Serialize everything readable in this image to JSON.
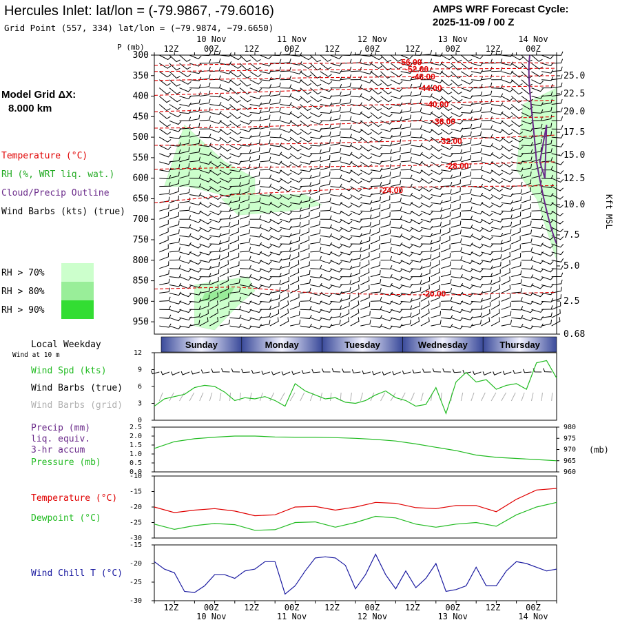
{
  "header": {
    "title": "Hercules Inlet:  lat/lon = (-79.9867, -79.6016)",
    "grid_point": "Grid Point (557, 334) lat/lon = (−79.9874, −79.6650)",
    "cycle_label": "AMPS WRF Forecast Cycle:",
    "cycle_value": "2025-11-09 / 00  Z"
  },
  "side": {
    "model_grid_label": "Model Grid ΔX:",
    "model_grid_value": "8.000 km",
    "legend_temperature": "Temperature (°C)",
    "legend_rh": "RH (%, WRT liq. wat.)",
    "legend_cloud": "Cloud/Precip Outline",
    "legend_wind": "Wind Barbs (kts) (true)",
    "rh70": "RH > 70%",
    "rh80": "RH > 80%",
    "rh90": "RH > 90%",
    "p_label": "P (mb)",
    "kft_label": "Kft MSL"
  },
  "colors": {
    "temperature": "#e00000",
    "rh_legend": "#e00000",
    "cloud": "#6a2a8a",
    "wind": "#000000",
    "wind_grid": "#b0b0b0",
    "speed": "#22bb22",
    "pressure": "#22bb22",
    "dewpoint": "#22bb22",
    "windchill": "#1a1aa0",
    "rh70": "#ccffcc",
    "rh80": "#99ee99",
    "rh90": "#33dd33",
    "weekday_band": "#3a4a9a"
  },
  "time_axis": {
    "top_hours": [
      "12Z",
      "00Z",
      "12Z",
      "00Z",
      "12Z",
      "00Z",
      "12Z",
      "00Z",
      "12Z",
      "00Z"
    ],
    "top_dates": [
      "10 Nov",
      "11 Nov",
      "12 Nov",
      "13 Nov",
      "14 Nov"
    ],
    "bottom_hours": [
      "12Z",
      "00Z",
      "12Z",
      "00Z",
      "12Z",
      "00Z",
      "12Z",
      "00Z",
      "12Z",
      "00Z"
    ],
    "bottom_dates": [
      "10 Nov",
      "11 Nov",
      "12 Nov",
      "13 Nov",
      "14 Nov"
    ]
  },
  "weekday": {
    "title": "Local Weekday",
    "subtitle": "Wind at 10 m",
    "days": [
      "Sunday",
      "Monday",
      "Tuesday",
      "Wednesday",
      "Thursday"
    ]
  },
  "panel_labels": {
    "wind_speed": "Wind Spd (kts)",
    "wind_barbs_true": "Wind Barbs (true)",
    "wind_barbs_grid": "Wind Barbs (grid)",
    "precip1": "Precip (mm)",
    "precip2": "liq. equiv.",
    "precip3": "3-hr accum",
    "pressure": "Pressure (mb)",
    "pressure_unit": "(mb)",
    "temperature": "Temperature (°C)",
    "dewpoint": "Dewpoint (°C)",
    "windchill": "Wind Chill T (°C)"
  },
  "chart_data": [
    {
      "type": "line",
      "panel": "cross-section",
      "y_pressure_ticks": [
        300,
        350,
        400,
        450,
        500,
        550,
        600,
        650,
        700,
        750,
        800,
        850,
        900,
        950
      ],
      "y_kft_ticks": [
        "25.0",
        "22.5",
        "20.0",
        "17.5",
        "15.0",
        "12.5",
        "10.0",
        "7.5",
        "5.0",
        "2.5",
        "0.68"
      ],
      "temperature_contour_labels": [
        "-56.00",
        "-52.00",
        "-48.00",
        "-44.00",
        "-40.00",
        "-36.00",
        "-32.00",
        "-28.00",
        "-24.00",
        "-20.00"
      ],
      "temperature_contours": [
        {
          "label": "-56.00",
          "p": [
            [
              0,
              325
            ],
            [
              24,
              322
            ],
            [
              48,
              320
            ],
            [
              72,
              318
            ],
            [
              96,
              318
            ],
            [
              120,
              319
            ]
          ]
        },
        {
          "label": "-52.00",
          "p": [
            [
              0,
              340
            ],
            [
              24,
              338
            ],
            [
              48,
              336
            ],
            [
              72,
              334
            ],
            [
              96,
              333
            ],
            [
              120,
              332
            ]
          ]
        },
        {
          "label": "-48.00",
          "p": [
            [
              0,
              362
            ],
            [
              24,
              358
            ],
            [
              48,
              355
            ],
            [
              72,
              353
            ],
            [
              96,
              352
            ],
            [
              120,
              350
            ]
          ]
        },
        {
          "label": "-44.00",
          "p": [
            [
              0,
              398
            ],
            [
              24,
              392
            ],
            [
              48,
              385
            ],
            [
              72,
              381
            ],
            [
              96,
              378
            ],
            [
              120,
              375
            ]
          ]
        },
        {
          "label": "-40.00",
          "p": [
            [
              0,
              438
            ],
            [
              24,
              432
            ],
            [
              48,
              425
            ],
            [
              72,
              420
            ],
            [
              96,
              414
            ],
            [
              120,
              410
            ]
          ]
        },
        {
          "label": "-36.00",
          "p": [
            [
              0,
              478
            ],
            [
              24,
              476
            ],
            [
              48,
              470
            ],
            [
              72,
              462
            ],
            [
              96,
              456
            ],
            [
              120,
              450
            ]
          ]
        },
        {
          "label": "-32.00",
          "p": [
            [
              0,
              520
            ],
            [
              24,
              518
            ],
            [
              48,
              515
            ],
            [
              72,
              510
            ],
            [
              96,
              503
            ],
            [
              120,
              495
            ]
          ]
        },
        {
          "label": "-28.00",
          "p": [
            [
              0,
              578
            ],
            [
              24,
              574
            ],
            [
              48,
              572
            ],
            [
              72,
              570
            ],
            [
              96,
              565
            ],
            [
              120,
              560
            ]
          ]
        },
        {
          "label": "-24.00",
          "p": [
            [
              0,
              660
            ],
            [
              12,
              650
            ],
            [
              24,
              640
            ],
            [
              48,
              630
            ],
            [
              72,
              622
            ],
            [
              96,
              620
            ],
            [
              120,
              618
            ]
          ]
        },
        {
          "label": "-20.00",
          "p": [
            [
              0,
              870
            ],
            [
              24,
              865
            ],
            [
              48,
              880
            ],
            [
              60,
              882
            ],
            [
              84,
              885
            ],
            [
              120,
              878
            ]
          ]
        }
      ],
      "rh_regions": [
        {
          "level": "rh70",
          "pts": [
            [
              3,
              620
            ],
            [
              9,
              470
            ],
            [
              21,
              560
            ],
            [
              30,
              600
            ],
            [
              30,
              660
            ],
            [
              20,
              640
            ],
            [
              10,
              620
            ]
          ]
        },
        {
          "level": "rh70",
          "pts": [
            [
              20,
              650
            ],
            [
              32,
              640
            ],
            [
              45,
              640
            ],
            [
              50,
              665
            ],
            [
              40,
              680
            ],
            [
              25,
              690
            ]
          ]
        },
        {
          "level": "rh70",
          "pts": [
            [
              12,
              860
            ],
            [
              28,
              840
            ],
            [
              30,
              875
            ],
            [
              25,
              910
            ],
            [
              18,
              970
            ],
            [
              12,
              960
            ]
          ]
        },
        {
          "level": "rh80",
          "pts": [
            [
              15,
              880
            ],
            [
              24,
              865
            ],
            [
              22,
              895
            ],
            [
              14,
              900
            ]
          ]
        },
        {
          "level": "rh70",
          "pts": [
            [
              110,
              420
            ],
            [
              120,
              380
            ],
            [
              120,
              800
            ],
            [
              114,
              650
            ],
            [
              108,
              580
            ]
          ]
        }
      ],
      "x_range_hours": [
        0,
        120
      ],
      "ylim_pressure": [
        980,
        300
      ]
    },
    {
      "type": "line",
      "panel": "surface-wind",
      "ylim": [
        0,
        12
      ],
      "y_ticks": [
        0,
        3,
        6,
        9,
        12
      ],
      "x_hours": [
        0,
        3,
        6,
        9,
        12,
        15,
        18,
        21,
        24,
        27,
        30,
        33,
        36,
        39,
        42,
        45,
        48,
        51,
        54,
        57,
        60,
        63,
        66,
        69,
        72,
        75,
        78,
        81,
        84,
        87,
        90,
        93,
        96,
        99,
        102,
        105,
        108,
        111,
        114,
        117,
        120
      ],
      "series": [
        {
          "name": "Wind Spd (kts)",
          "values": [
            2.5,
            3.8,
            4.2,
            4.6,
            5.8,
            6.2,
            6.0,
            5.0,
            3.5,
            4.0,
            3.8,
            4.2,
            3.5,
            2.5,
            6.5,
            5.2,
            4.5,
            3.8,
            4.0,
            3.2,
            3.0,
            3.5,
            4.5,
            5.2,
            4.0,
            3.5,
            2.5,
            2.8,
            5.8,
            1.2,
            6.8,
            8.5,
            6.8,
            7.2,
            5.5,
            6.2,
            6.5,
            5.5,
            10.2,
            10.6,
            7.5
          ]
        }
      ]
    },
    {
      "type": "line",
      "panel": "precip-pressure",
      "ylim_left": [
        0,
        2.5
      ],
      "y_ticks_left": [
        "2.5",
        "2.0",
        "1.5",
        "1.0",
        "0.5",
        "0.0"
      ],
      "ylim_right": [
        960,
        980
      ],
      "y_ticks_right": [
        "980",
        "975",
        "970",
        "965",
        "960"
      ],
      "x_hours": [
        0,
        6,
        12,
        18,
        24,
        30,
        36,
        42,
        48,
        54,
        60,
        66,
        72,
        78,
        84,
        90,
        96,
        102,
        108,
        114,
        120
      ],
      "series": [
        {
          "name": "Pressure (mb)",
          "values": [
            970.5,
            973.5,
            974.8,
            975.5,
            976.0,
            976.0,
            975.6,
            975.5,
            975.5,
            975.3,
            975.0,
            974.5,
            973.8,
            972.5,
            971.0,
            969.5,
            967.5,
            966.5,
            966.0,
            965.5,
            965.0
          ]
        }
      ]
    },
    {
      "type": "line",
      "panel": "temperature",
      "ylim": [
        -30,
        -10
      ],
      "y_ticks": [
        -10,
        -15,
        -20,
        -25,
        -30
      ],
      "x_hours": [
        0,
        6,
        12,
        18,
        24,
        30,
        36,
        42,
        48,
        54,
        60,
        66,
        72,
        78,
        84,
        90,
        96,
        102,
        108,
        114,
        120
      ],
      "series": [
        {
          "name": "Temperature (°C)",
          "values": [
            -20.0,
            -21.8,
            -21.0,
            -20.5,
            -21.3,
            -22.8,
            -22.5,
            -20.0,
            -19.8,
            -21.0,
            -20.0,
            -18.5,
            -18.8,
            -20.2,
            -20.5,
            -19.5,
            -19.5,
            -21.5,
            -17.5,
            -14.5,
            -14.0
          ]
        },
        {
          "name": "Dewpoint (°C)",
          "values": [
            -25.5,
            -27.2,
            -26.0,
            -25.3,
            -25.7,
            -27.5,
            -27.3,
            -25.0,
            -24.8,
            -26.5,
            -25.0,
            -23.0,
            -23.5,
            -25.5,
            -26.5,
            -25.5,
            -25.0,
            -26.2,
            -22.5,
            -20.0,
            -18.5
          ]
        }
      ]
    },
    {
      "type": "line",
      "panel": "windchill",
      "ylim": [
        -30,
        -15
      ],
      "y_ticks": [
        -15,
        -20,
        -25,
        -30
      ],
      "x_hours": [
        0,
        3,
        6,
        9,
        12,
        15,
        18,
        21,
        24,
        27,
        30,
        33,
        36,
        39,
        42,
        45,
        48,
        51,
        54,
        57,
        60,
        63,
        66,
        69,
        72,
        75,
        78,
        81,
        84,
        87,
        90,
        93,
        96,
        99,
        102,
        105,
        108,
        111,
        114,
        117,
        120
      ],
      "series": [
        {
          "name": "Wind Chill T (°C)",
          "values": [
            -19.5,
            -21.5,
            -22.5,
            -27.5,
            -27.8,
            -26.0,
            -23.0,
            -23.0,
            -24.0,
            -22.0,
            -21.5,
            -19.5,
            -19.5,
            -28.2,
            -26.0,
            -22.0,
            -18.5,
            -18.2,
            -18.5,
            -20.5,
            -26.8,
            -23.0,
            -17.5,
            -23.0,
            -26.8,
            -22.0,
            -26.5,
            -24.0,
            -20.0,
            -27.5,
            -27.0,
            -26.0,
            -21.0,
            -26.0,
            -26.0,
            -22.0,
            -19.5,
            -20.0,
            -21.0,
            -22.0,
            -21.5
          ]
        }
      ]
    }
  ]
}
